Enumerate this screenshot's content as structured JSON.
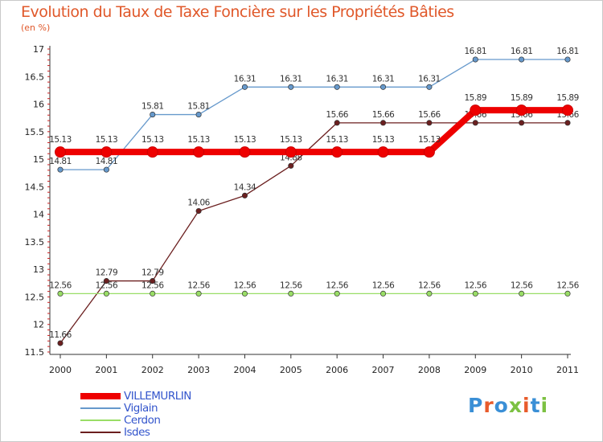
{
  "header": {
    "title": "Evolution du Taux de Taxe Foncière sur les Propriétés Bâties",
    "subtitle": "(en %)"
  },
  "logo": {
    "text": "Proxiti",
    "colors": [
      "#3a8fd6",
      "#e85b2b",
      "#3a8fd6",
      "#7cc142",
      "#e85b2b",
      "#3a8fd6",
      "#7cc142"
    ]
  },
  "chart_data": {
    "type": "line",
    "title": "Evolution du Taux de Taxe Foncière sur les Propriétés Bâties",
    "ylabel": "(en %)",
    "xlabel": "",
    "categories": [
      "2000",
      "2001",
      "2002",
      "2003",
      "2004",
      "2005",
      "2006",
      "2007",
      "2008",
      "2009",
      "2010",
      "2011"
    ],
    "ylim": [
      11.5,
      17
    ],
    "yticks": [
      11.5,
      12,
      12.5,
      13,
      13.5,
      14,
      14.5,
      15,
      15.5,
      16,
      16.5,
      17
    ],
    "grid": false,
    "legend_position": "bottom-left",
    "series": [
      {
        "name": "Isdes",
        "color": "#6b1f1f",
        "values": [
          11.66,
          12.79,
          12.79,
          14.06,
          14.34,
          14.88,
          15.66,
          15.66,
          15.66,
          15.66,
          15.66,
          15.66
        ]
      },
      {
        "name": "Cerdon",
        "color": "#99dd66",
        "values": [
          12.56,
          12.56,
          12.56,
          12.56,
          12.56,
          12.56,
          12.56,
          12.56,
          12.56,
          12.56,
          12.56,
          12.56
        ]
      },
      {
        "name": "Viglain",
        "color": "#6699cc",
        "values": [
          14.81,
          14.81,
          15.81,
          15.81,
          16.31,
          16.31,
          16.31,
          16.31,
          16.31,
          16.81,
          16.81,
          16.81
        ]
      },
      {
        "name": "VILLEMURLIN",
        "color": "#ee0000",
        "values": [
          15.13,
          15.13,
          15.13,
          15.13,
          15.13,
          15.13,
          15.13,
          15.13,
          15.13,
          15.89,
          15.89,
          15.89
        ]
      }
    ],
    "legend_order": [
      "VILLEMURLIN",
      "Viglain",
      "Cerdon",
      "Isdes"
    ]
  }
}
